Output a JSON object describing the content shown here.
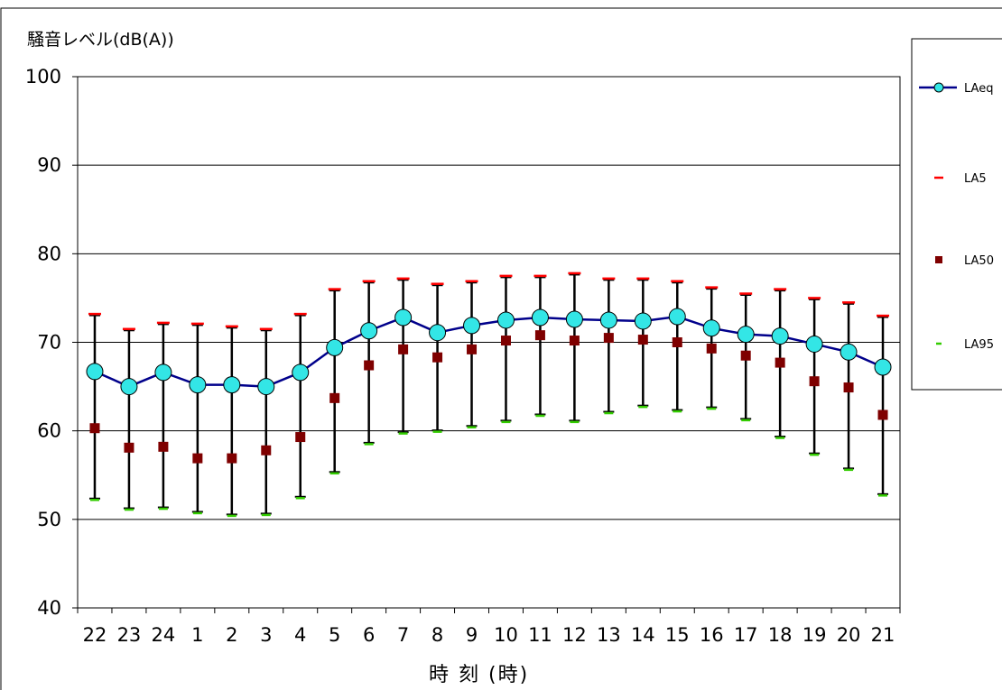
{
  "chart_data": {
    "type": "line",
    "title": "騒音レベル(dB(A))",
    "xlabel": "時 刻 (時)",
    "ylim": [
      40,
      100
    ],
    "yticks": [
      40,
      50,
      60,
      70,
      80,
      90,
      100
    ],
    "grid": true,
    "legend_position": "right",
    "categories": [
      "22",
      "23",
      "24",
      "1",
      "2",
      "3",
      "4",
      "5",
      "6",
      "7",
      "8",
      "9",
      "10",
      "11",
      "12",
      "13",
      "14",
      "15",
      "16",
      "17",
      "18",
      "19",
      "20",
      "21"
    ],
    "series": [
      {
        "name": "LAeq",
        "color": "#00008b",
        "marker_color": "#33e6e6",
        "values": [
          66.7,
          65.0,
          66.6,
          65.2,
          65.2,
          65.0,
          66.6,
          69.4,
          71.3,
          72.8,
          71.1,
          71.9,
          72.5,
          72.8,
          72.6,
          72.5,
          72.4,
          72.9,
          71.6,
          70.9,
          70.7,
          69.8,
          68.9,
          67.2
        ]
      },
      {
        "name": "LA5",
        "color": "#ff0000",
        "values": [
          73.2,
          71.5,
          72.2,
          72.1,
          71.8,
          71.5,
          73.2,
          76.0,
          76.9,
          77.2,
          76.6,
          76.9,
          77.5,
          77.5,
          77.8,
          77.2,
          77.2,
          76.9,
          76.2,
          75.5,
          76.0,
          75.0,
          74.5,
          73.0
        ]
      },
      {
        "name": "LA50",
        "color": "#7f0000",
        "values": [
          60.3,
          58.1,
          58.2,
          56.9,
          56.9,
          57.8,
          59.3,
          63.7,
          67.4,
          69.2,
          68.3,
          69.2,
          70.2,
          70.8,
          70.2,
          70.5,
          70.3,
          70.0,
          69.3,
          68.5,
          67.7,
          65.6,
          64.9,
          61.8
        ]
      },
      {
        "name": "LA95",
        "color": "#33cc00",
        "values": [
          52.2,
          51.1,
          51.2,
          50.7,
          50.4,
          50.5,
          52.4,
          55.2,
          58.5,
          59.7,
          59.9,
          60.4,
          61.0,
          61.7,
          61.0,
          62.0,
          62.7,
          62.2,
          62.5,
          61.2,
          59.2,
          57.3,
          55.6,
          52.7
        ]
      }
    ]
  }
}
